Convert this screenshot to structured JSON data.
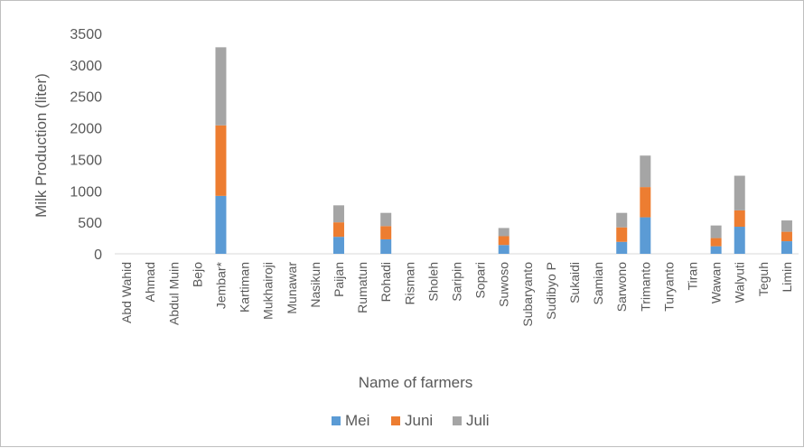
{
  "chart_data": {
    "type": "bar",
    "stacked": true,
    "title": "",
    "xlabel": "Name of farmers",
    "ylabel": "Milk Production (liter)",
    "ylim": [
      0,
      3500
    ],
    "yticks": [
      "0",
      "500",
      "1000",
      "1500",
      "2000",
      "2500",
      "3000",
      "3500"
    ],
    "grid": false,
    "legend_position": "bottom",
    "categories": [
      "Abd Wahid",
      "Ahmad",
      "Abdul Muin",
      "Bejo",
      "Jembar*",
      "Kartiman",
      "Mukhairoji",
      "Munawar",
      "Nasikun",
      "Paijan",
      "Rumatun",
      "Rohadi",
      "Risman",
      "Sholeh",
      "Saripin",
      "Sopari",
      "Suwoso",
      "Subaryanto",
      "Sudibyo P",
      "Sukaidi",
      "Samian",
      "Sarwono",
      "Trimanto",
      "Turyanto",
      "Tiran",
      "Wawan",
      "Walyuti",
      "Teguh",
      "Limin"
    ],
    "series": [
      {
        "name": "Mei",
        "color": "#5b9bd5",
        "values": [
          0,
          0,
          0,
          0,
          920,
          0,
          0,
          0,
          0,
          270,
          0,
          230,
          0,
          0,
          0,
          0,
          140,
          0,
          0,
          0,
          0,
          190,
          580,
          0,
          0,
          120,
          430,
          0,
          200
        ]
      },
      {
        "name": "Juni",
        "color": "#ed7d31",
        "values": [
          0,
          0,
          0,
          0,
          1120,
          0,
          0,
          0,
          0,
          230,
          0,
          210,
          0,
          0,
          0,
          0,
          140,
          0,
          0,
          0,
          0,
          230,
          480,
          0,
          0,
          130,
          260,
          0,
          150
        ]
      },
      {
        "name": "Juli",
        "color": "#a5a5a5",
        "values": [
          0,
          0,
          0,
          0,
          1240,
          0,
          0,
          0,
          0,
          270,
          0,
          210,
          0,
          0,
          0,
          0,
          130,
          0,
          0,
          0,
          0,
          230,
          500,
          0,
          0,
          200,
          550,
          0,
          180
        ]
      }
    ]
  }
}
